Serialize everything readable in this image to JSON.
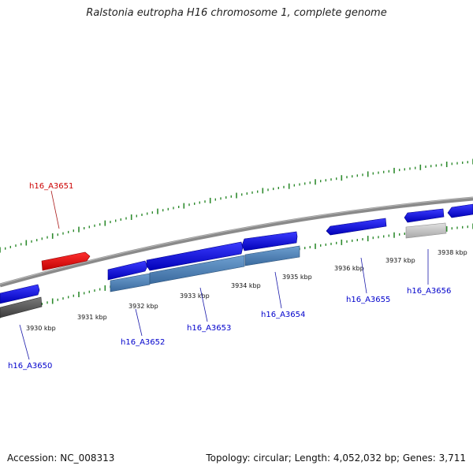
{
  "title": "Ralstonia eutropha H16 chromosome 1, complete genome",
  "footer": {
    "accession": "Accession: NC_008313",
    "topology": "Topology: circular; Length: 4,052,032 bp; Genes: 3,711"
  },
  "colors": {
    "backbone": "#8a8a8a",
    "tick": "#2e8b2e",
    "cds_forward": "#1010e6",
    "cds_reverse_highlight": "#e00000",
    "feature_blue": "#4a7fb5",
    "feature_grey": "#bdbdbd",
    "feature_dark": "#5a5a5a",
    "label_blue": "#0000cc",
    "label_red": "#cc0000"
  },
  "scale_labels": [
    "3930 kbp",
    "3931 kbp",
    "3932 kbp",
    "3933 kbp",
    "3934 kbp",
    "3935 kbp",
    "3936 kbp",
    "3937 kbp",
    "3938 kbp"
  ],
  "gene_labels": [
    {
      "name": "h16_A3650",
      "color": "blue"
    },
    {
      "name": "h16_A3651",
      "color": "red"
    },
    {
      "name": "h16_A3652",
      "color": "blue"
    },
    {
      "name": "h16_A3653",
      "color": "blue"
    },
    {
      "name": "h16_A3654",
      "color": "blue"
    },
    {
      "name": "h16_A3655",
      "color": "blue"
    },
    {
      "name": "h16_A3656",
      "color": "blue"
    }
  ]
}
